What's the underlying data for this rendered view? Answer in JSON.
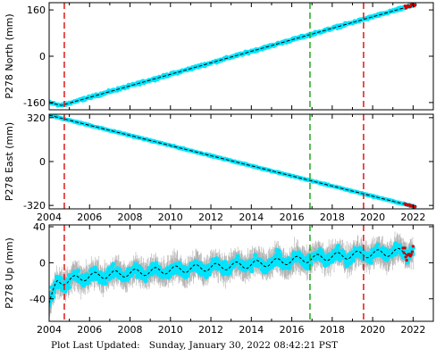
{
  "colors": {
    "scatter": "#00e5ff",
    "errorbar": "#b0b0b0",
    "trend": "#000000",
    "event_red": "#e01818",
    "event_green": "#22aa22",
    "endpoint": "#cc0000"
  },
  "footer": {
    "prefix": "Plot Last Updated:",
    "timestamp": "Sunday, January 30, 2022 08:42:21 PST"
  },
  "chart_data": [
    {
      "type": "scatter",
      "ylabel": "P278 North (mm)",
      "xlim": [
        2004,
        2023
      ],
      "ylim": [
        -185,
        185
      ],
      "yticks": [
        -160,
        0,
        160
      ],
      "xticks": [
        2004,
        2006,
        2008,
        2010,
        2012,
        2014,
        2016,
        2018,
        2020,
        2022
      ],
      "x_tick_labels": [
        "",
        "",
        "",
        "",
        "",
        "",
        "",
        "",
        "",
        ""
      ],
      "trend": {
        "x": [
          2004.0,
          2004.6,
          2022.1
        ],
        "y": [
          -160,
          -170,
          178
        ]
      },
      "scatter_noise_mm": 4,
      "events": [
        {
          "x": 2004.75,
          "color": "red"
        },
        {
          "x": 2016.9,
          "color": "green"
        },
        {
          "x": 2019.55,
          "color": "red"
        }
      ]
    },
    {
      "type": "scatter",
      "ylabel": "P278 East (mm)",
      "xlim": [
        2004,
        2023
      ],
      "ylim": [
        -345,
        345
      ],
      "yticks": [
        -320,
        0,
        320
      ],
      "xticks": [
        2004,
        2006,
        2008,
        2010,
        2012,
        2014,
        2016,
        2018,
        2020,
        2022
      ],
      "x_tick_labels": [
        "2004",
        "2006",
        "2008",
        "2010",
        "2012",
        "2014",
        "2016",
        "2018",
        "2020",
        "2022"
      ],
      "trend": {
        "x": [
          2004.0,
          2022.1
        ],
        "y": [
          338,
          -330
        ]
      },
      "scatter_noise_mm": 4,
      "events": [
        {
          "x": 2004.75,
          "color": "red"
        },
        {
          "x": 2016.9,
          "color": "green"
        },
        {
          "x": 2019.55,
          "color": "red"
        }
      ]
    },
    {
      "type": "scatter",
      "ylabel": "P278 Up (mm)",
      "xlim": [
        2004,
        2023
      ],
      "ylim": [
        -65,
        42
      ],
      "yticks": [
        -40,
        0,
        40
      ],
      "xticks": [
        2004,
        2006,
        2008,
        2010,
        2012,
        2014,
        2016,
        2018,
        2020,
        2022
      ],
      "x_tick_labels": [
        "2004",
        "2006",
        "2008",
        "2010",
        "2012",
        "2014",
        "2016",
        "2018",
        "2020",
        "2022"
      ],
      "trend": {
        "x": [
          2004.0,
          2004.4,
          2006.0,
          2010.0,
          2014.0,
          2018.0,
          2022.0
        ],
        "y": [
          -45,
          -22,
          -15,
          -8,
          -2,
          7,
          13
        ]
      },
      "seasonal_amplitude_mm": 4,
      "scatter_noise_mm": 6,
      "events": [
        {
          "x": 2004.75,
          "color": "red"
        },
        {
          "x": 2016.9,
          "color": "green"
        },
        {
          "x": 2019.55,
          "color": "red"
        }
      ]
    }
  ]
}
